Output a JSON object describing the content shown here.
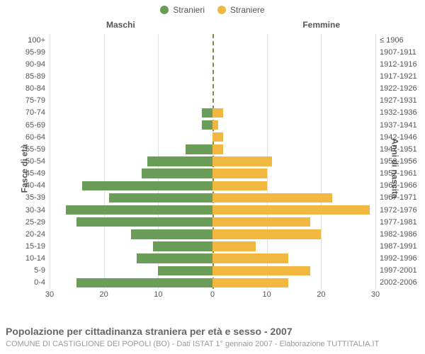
{
  "type": "population-pyramid",
  "legend": {
    "male": {
      "label": "Stranieri",
      "color": "#6a9e58"
    },
    "female": {
      "label": "Straniere",
      "color": "#f0b840"
    }
  },
  "headers": {
    "left": "Maschi",
    "right": "Femmine"
  },
  "axis_titles": {
    "left": "Fasce di età",
    "right": "Anni di nascita"
  },
  "xaxis": {
    "max": 30,
    "ticks_left": [
      30,
      20,
      10,
      0
    ],
    "ticks_right": [
      0,
      10,
      20,
      30
    ]
  },
  "grid_color": "#e0e0e0",
  "center_dash_color": "#888844",
  "background_color": "#ffffff",
  "font_family": "Arial",
  "rows": [
    {
      "age": "100+",
      "birth": "≤ 1906",
      "m": 0,
      "f": 0
    },
    {
      "age": "95-99",
      "birth": "1907-1911",
      "m": 0,
      "f": 0
    },
    {
      "age": "90-94",
      "birth": "1912-1916",
      "m": 0,
      "f": 0
    },
    {
      "age": "85-89",
      "birth": "1917-1921",
      "m": 0,
      "f": 0
    },
    {
      "age": "80-84",
      "birth": "1922-1926",
      "m": 0,
      "f": 0
    },
    {
      "age": "75-79",
      "birth": "1927-1931",
      "m": 0,
      "f": 0
    },
    {
      "age": "70-74",
      "birth": "1932-1936",
      "m": 2,
      "f": 2
    },
    {
      "age": "65-69",
      "birth": "1937-1941",
      "m": 2,
      "f": 1
    },
    {
      "age": "60-64",
      "birth": "1942-1946",
      "m": 0,
      "f": 2
    },
    {
      "age": "55-59",
      "birth": "1947-1951",
      "m": 5,
      "f": 2
    },
    {
      "age": "50-54",
      "birth": "1952-1956",
      "m": 12,
      "f": 11
    },
    {
      "age": "45-49",
      "birth": "1957-1961",
      "m": 13,
      "f": 10
    },
    {
      "age": "40-44",
      "birth": "1962-1966",
      "m": 24,
      "f": 10
    },
    {
      "age": "35-39",
      "birth": "1967-1971",
      "m": 19,
      "f": 22
    },
    {
      "age": "30-34",
      "birth": "1972-1976",
      "m": 27,
      "f": 29
    },
    {
      "age": "25-29",
      "birth": "1977-1981",
      "m": 25,
      "f": 18
    },
    {
      "age": "20-24",
      "birth": "1982-1986",
      "m": 15,
      "f": 20
    },
    {
      "age": "15-19",
      "birth": "1987-1991",
      "m": 11,
      "f": 8
    },
    {
      "age": "10-14",
      "birth": "1992-1996",
      "m": 14,
      "f": 14
    },
    {
      "age": "5-9",
      "birth": "1997-2001",
      "m": 10,
      "f": 18
    },
    {
      "age": "0-4",
      "birth": "2002-2006",
      "m": 25,
      "f": 14
    }
  ],
  "footer": {
    "title": "Popolazione per cittadinanza straniera per età e sesso - 2007",
    "subtitle": "COMUNE DI CASTIGLIONE DEI POPOLI (BO) - Dati ISTAT 1° gennaio 2007 - Elaborazione TUTTITALIA.IT"
  }
}
